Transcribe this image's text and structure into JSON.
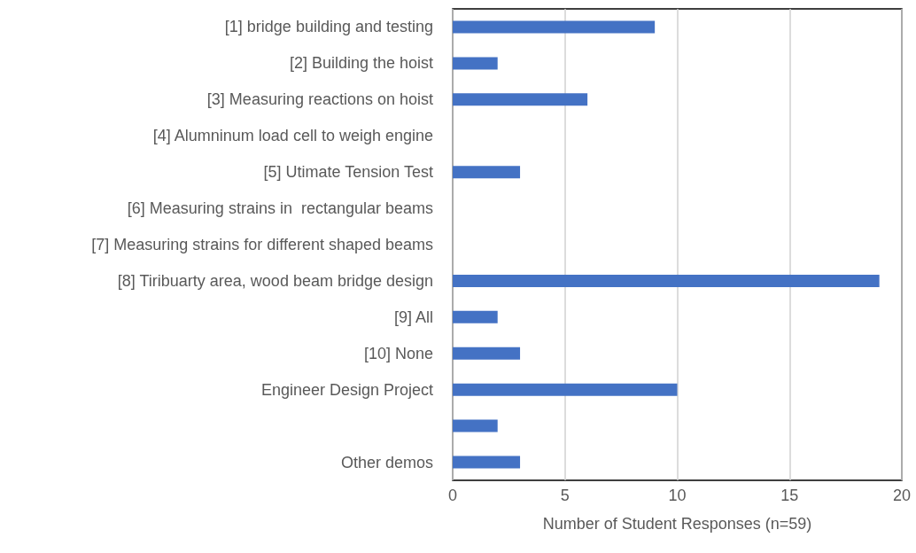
{
  "chart_data": {
    "type": "bar",
    "orientation": "horizontal",
    "xlabel": "Number of Student Responses (n=59)",
    "categories": [
      "[1] bridge building and testing",
      "[2] Building the hoist",
      "[3] Measuring reactions on hoist",
      "[4] Alumninum load cell to weigh engine",
      "[5] Utimate Tension Test",
      "[6] Measuring strains in  rectangular beams",
      "[7] Measuring strains for different shaped beams",
      "[8] Tiribuarty area, wood beam bridge design",
      "[9] All",
      "[10] None",
      "Engineer Design Project",
      null,
      "Other demos"
    ],
    "values": [
      9,
      2,
      6,
      0,
      3,
      0,
      0,
      19,
      2,
      3,
      10,
      2,
      3
    ],
    "color": "#4472c4",
    "xlim": [
      0,
      20
    ],
    "xticks": [
      0,
      5,
      10,
      15,
      20
    ],
    "grid": "x"
  }
}
